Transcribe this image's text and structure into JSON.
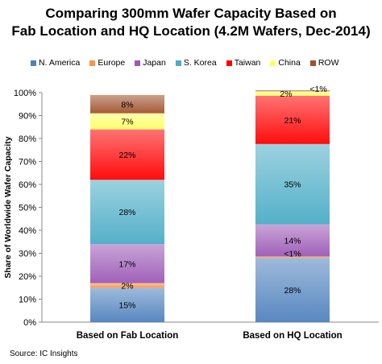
{
  "chart_data": {
    "type": "bar",
    "stacked": true,
    "title_lines": [
      "Comparing 300mm Wafer Capacity Based on",
      "Fab Location and HQ Location (4.2M Wafers, Dec-2014)"
    ],
    "ylabel": "Share of Worldwide Wafer Capacity",
    "xlabel": "",
    "ylim": [
      0,
      100
    ],
    "yticks": [
      "0%",
      "10%",
      "20%",
      "30%",
      "40%",
      "50%",
      "60%",
      "70%",
      "80%",
      "90%",
      "100%"
    ],
    "categories": [
      "Based on Fab Location",
      "Based on HQ Location"
    ],
    "legend_position": "top",
    "series": [
      {
        "name": "N. America",
        "color": "#4f81bd",
        "values": [
          15,
          28
        ],
        "labels": [
          "15%",
          "28%"
        ]
      },
      {
        "name": "Europe",
        "color": "#f79646",
        "values": [
          2,
          0.6
        ],
        "labels": [
          "2%",
          "<1%"
        ]
      },
      {
        "name": "Japan",
        "color": "#9b59b6",
        "values": [
          17,
          14
        ],
        "labels": [
          "17%",
          "14%"
        ]
      },
      {
        "name": "S. Korea",
        "color": "#4bacc6",
        "values": [
          28,
          35
        ],
        "labels": [
          "28%",
          "35%"
        ]
      },
      {
        "name": "Taiwan",
        "color": "#ff0000",
        "values": [
          22,
          21
        ],
        "labels": [
          "22%",
          "21%"
        ]
      },
      {
        "name": "China",
        "color": "#ffff66",
        "values": [
          7,
          2
        ],
        "labels": [
          "7%",
          "2%"
        ]
      },
      {
        "name": "ROW",
        "color": "#a0522d",
        "values": [
          8,
          0.4
        ],
        "labels": [
          "8%",
          "<1%"
        ]
      }
    ]
  },
  "source": "Source:  IC Insights"
}
